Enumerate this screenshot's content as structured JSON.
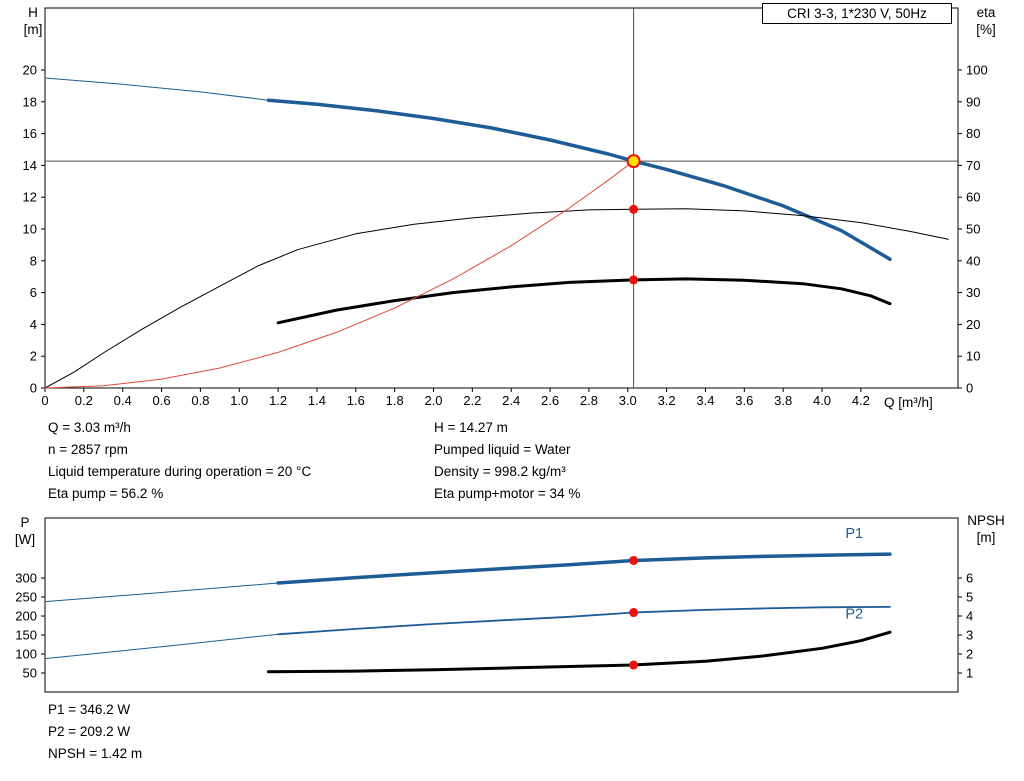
{
  "window": {
    "title_box": "CRI 3-3, 1*230 V, 50Hz"
  },
  "axes_labels": {
    "h": "H\n[m]",
    "eta": "eta\n[%]",
    "q": "Q [m³/h]",
    "p": "P\n[W]",
    "npsh": "NPSH\n[m]"
  },
  "info_panel": {
    "left": [
      "Q = 3.03 m³/h",
      "n = 2857 rpm",
      "Liquid temperature during operation = 20 °C",
      "Eta pump = 56.2 %"
    ],
    "right": [
      "H = 14.27 m",
      "Pumped liquid = Water",
      "Density = 998.2 kg/m³",
      "Eta pump+motor = 34 %"
    ]
  },
  "result_panel": {
    "lines": [
      "P1 = 346.2 W",
      "P2 = 209.2 W",
      "NPSH = 1.42 m"
    ]
  },
  "colors": {
    "curve_blue": "#1d5c96",
    "curve_black": "#000000",
    "system_red": "#e04a3c",
    "dot_red": "#e8140c",
    "duty_yellow": "#ffe100",
    "crosshair_gray": "#4d4d4d"
  },
  "chart_data": [
    {
      "type": "line",
      "name": "hq-eta-chart",
      "x": {
        "min": 0,
        "max": 4.7,
        "tick_values": [
          0,
          0.2,
          0.4,
          0.6,
          0.8,
          1.0,
          1.2,
          1.4,
          1.6,
          1.8,
          2.0,
          2.2,
          2.4,
          2.6,
          2.8,
          3.0,
          3.2,
          3.4,
          3.6,
          3.8,
          4.0,
          4.2
        ],
        "tick_labels": [
          "0",
          "0.2",
          "0.4",
          "0.6",
          "0.8",
          "1.0",
          "1.2",
          "1.4",
          "1.6",
          "1.8",
          "2.0",
          "2.2",
          "2.4",
          "2.6",
          "2.8",
          "3.0",
          "3.2",
          "3.4",
          "3.6",
          "3.8",
          "4.0",
          "4.2"
        ]
      },
      "y_left": {
        "min": 0,
        "max": 23.9,
        "tick_values": [
          0,
          2,
          4,
          6,
          8,
          10,
          12,
          14,
          16,
          18,
          20
        ],
        "tick_labels": [
          "0",
          "2",
          "4",
          "6",
          "8",
          "10",
          "12",
          "14",
          "16",
          "18",
          "20"
        ]
      },
      "y_right": {
        "min": 0,
        "max": 119.5,
        "tick_values": [
          0,
          10,
          20,
          30,
          40,
          50,
          60,
          70,
          80,
          90,
          100
        ],
        "tick_labels": [
          "0",
          "10",
          "20",
          "30",
          "40",
          "50",
          "60",
          "70",
          "80",
          "90",
          "100"
        ]
      },
      "reference_lines": [
        {
          "orient": "h",
          "axis": "left",
          "value": 14.27
        },
        {
          "orient": "v",
          "value": 3.03
        }
      ],
      "series": [
        {
          "name": "h-curve-extension",
          "axis": "left",
          "color": "#1d5c96",
          "width": 1,
          "points": [
            [
              0,
              19.5
            ],
            [
              0.4,
              19.1
            ],
            [
              0.8,
              18.62
            ],
            [
              1.15,
              18.1
            ]
          ]
        },
        {
          "name": "h-curve",
          "axis": "left",
          "color": "#1d5c96",
          "width": 3.5,
          "points": [
            [
              1.15,
              18.1
            ],
            [
              1.4,
              17.85
            ],
            [
              1.7,
              17.45
            ],
            [
              2.0,
              16.95
            ],
            [
              2.3,
              16.35
            ],
            [
              2.6,
              15.6
            ],
            [
              2.9,
              14.72
            ],
            [
              3.03,
              14.27
            ],
            [
              3.2,
              13.75
            ],
            [
              3.5,
              12.7
            ],
            [
              3.8,
              11.45
            ],
            [
              4.1,
              9.9
            ],
            [
              4.35,
              8.1
            ]
          ]
        },
        {
          "name": "eta-pump-curve",
          "axis": "right",
          "color": "#000000",
          "width": 1,
          "points": [
            [
              0,
              0
            ],
            [
              0.15,
              5
            ],
            [
              0.3,
              11
            ],
            [
              0.5,
              18.5
            ],
            [
              0.7,
              25.5
            ],
            [
              0.9,
              32
            ],
            [
              1.1,
              38.5
            ],
            [
              1.3,
              43.5
            ],
            [
              1.6,
              48.5
            ],
            [
              1.9,
              51.5
            ],
            [
              2.2,
              53.5
            ],
            [
              2.5,
              55
            ],
            [
              2.8,
              56
            ],
            [
              3.03,
              56.2
            ],
            [
              3.3,
              56.4
            ],
            [
              3.6,
              55.7
            ],
            [
              3.9,
              54.2
            ],
            [
              4.2,
              52
            ],
            [
              4.45,
              49.3
            ],
            [
              4.65,
              46.8
            ]
          ]
        },
        {
          "name": "eta-pump-motor-curve",
          "axis": "right",
          "color": "#000000",
          "width": 3,
          "points": [
            [
              1.2,
              20.5
            ],
            [
              1.5,
              24.5
            ],
            [
              1.8,
              27.5
            ],
            [
              2.1,
              30
            ],
            [
              2.4,
              31.8
            ],
            [
              2.7,
              33.2
            ],
            [
              3.03,
              34
            ],
            [
              3.3,
              34.3
            ],
            [
              3.6,
              33.9
            ],
            [
              3.9,
              32.8
            ],
            [
              4.1,
              31.2
            ],
            [
              4.25,
              29
            ],
            [
              4.35,
              26.5
            ]
          ]
        },
        {
          "name": "system-curve",
          "axis": "left",
          "color": "#e04a3c",
          "width": 1,
          "points": [
            [
              0,
              0
            ],
            [
              0.3,
              0.14
            ],
            [
              0.6,
              0.56
            ],
            [
              0.9,
              1.26
            ],
            [
              1.2,
              2.24
            ],
            [
              1.5,
              3.5
            ],
            [
              1.8,
              5.03
            ],
            [
              2.1,
              6.85
            ],
            [
              2.4,
              8.95
            ],
            [
              2.7,
              11.33
            ],
            [
              2.9,
              13.07
            ],
            [
              3.03,
              14.27
            ]
          ]
        }
      ],
      "labels": [],
      "markers": [
        {
          "name": "duty-point-marker",
          "x": 3.03,
          "v": 14.27,
          "axis": "left",
          "r": 6,
          "fill": "#ffe100",
          "stroke": "#e8140c",
          "stroke_width": 2
        },
        {
          "name": "eta-pump-point",
          "x": 3.03,
          "v": 56.2,
          "axis": "right",
          "r": 4.5,
          "fill": "#e8140c"
        },
        {
          "name": "eta-pump-motor-point",
          "x": 3.03,
          "v": 34,
          "axis": "right",
          "r": 4.5,
          "fill": "#e8140c"
        }
      ]
    },
    {
      "type": "line",
      "name": "power-npsh-chart",
      "x": {
        "min": 0,
        "max": 4.7,
        "tick_values": [],
        "tick_labels": []
      },
      "y_left": {
        "min": 0,
        "max": 458,
        "tick_values": [
          50,
          100,
          150,
          200,
          250,
          300
        ],
        "tick_labels": [
          "50",
          "100",
          "150",
          "200",
          "250",
          "300"
        ]
      },
      "y_right": {
        "min": 0,
        "max": 9.16,
        "tick_values": [
          1,
          2,
          3,
          4,
          5,
          6
        ],
        "tick_labels": [
          "1",
          "2",
          "3",
          "4",
          "5",
          "6"
        ]
      },
      "reference_lines": [],
      "series": [
        {
          "name": "p1-curve-extension",
          "axis": "left",
          "color": "#1d5c96",
          "width": 1,
          "points": [
            [
              0,
              238
            ],
            [
              0.6,
              262
            ],
            [
              1.2,
              287
            ]
          ]
        },
        {
          "name": "p1-curve",
          "axis": "left",
          "color": "#1d5c96",
          "width": 3.5,
          "points": [
            [
              1.2,
              287
            ],
            [
              1.6,
              301
            ],
            [
              2.0,
              314
            ],
            [
              2.4,
              326
            ],
            [
              2.7,
              335
            ],
            [
              3.03,
              346.2
            ],
            [
              3.4,
              353
            ],
            [
              3.7,
              357
            ],
            [
              4.0,
              360
            ],
            [
              4.35,
              363
            ]
          ]
        },
        {
          "name": "p2-curve-extension",
          "axis": "left",
          "color": "#1d5c96",
          "width": 1,
          "points": [
            [
              0,
              88
            ],
            [
              0.6,
              119
            ],
            [
              1.2,
              152
            ]
          ]
        },
        {
          "name": "p2-curve",
          "axis": "left",
          "color": "#1d5c96",
          "width": 1.8,
          "points": [
            [
              1.2,
              152
            ],
            [
              1.6,
              166
            ],
            [
              2.0,
              179
            ],
            [
              2.4,
              190
            ],
            [
              2.7,
              198
            ],
            [
              3.03,
              209.2
            ],
            [
              3.4,
              216
            ],
            [
              3.7,
              220
            ],
            [
              4.0,
              223
            ],
            [
              4.35,
              224
            ]
          ]
        },
        {
          "name": "npsh-curve",
          "axis": "right",
          "color": "#000000",
          "width": 3,
          "points": [
            [
              1.15,
              1.07
            ],
            [
              1.6,
              1.1
            ],
            [
              2.0,
              1.17
            ],
            [
              2.4,
              1.27
            ],
            [
              2.7,
              1.34
            ],
            [
              3.03,
              1.42
            ],
            [
              3.4,
              1.62
            ],
            [
              3.7,
              1.9
            ],
            [
              4.0,
              2.3
            ],
            [
              4.2,
              2.7
            ],
            [
              4.35,
              3.15
            ]
          ]
        }
      ],
      "labels": [
        {
          "name": "p1-label",
          "text": "P1",
          "x": 4.12,
          "v": 405,
          "axis": "left",
          "color": "#1d5c96"
        },
        {
          "name": "p2-label",
          "text": "P2",
          "x": 4.12,
          "v": 193,
          "axis": "left",
          "color": "#1d5c96"
        }
      ],
      "markers": [
        {
          "name": "p1-point",
          "x": 3.03,
          "v": 346.2,
          "axis": "left",
          "r": 4.5,
          "fill": "#e8140c"
        },
        {
          "name": "p2-point",
          "x": 3.03,
          "v": 209.2,
          "axis": "left",
          "r": 4.5,
          "fill": "#e8140c"
        },
        {
          "name": "npsh-point",
          "x": 3.03,
          "v": 1.42,
          "axis": "right",
          "r": 4.5,
          "fill": "#e8140c"
        }
      ]
    }
  ]
}
